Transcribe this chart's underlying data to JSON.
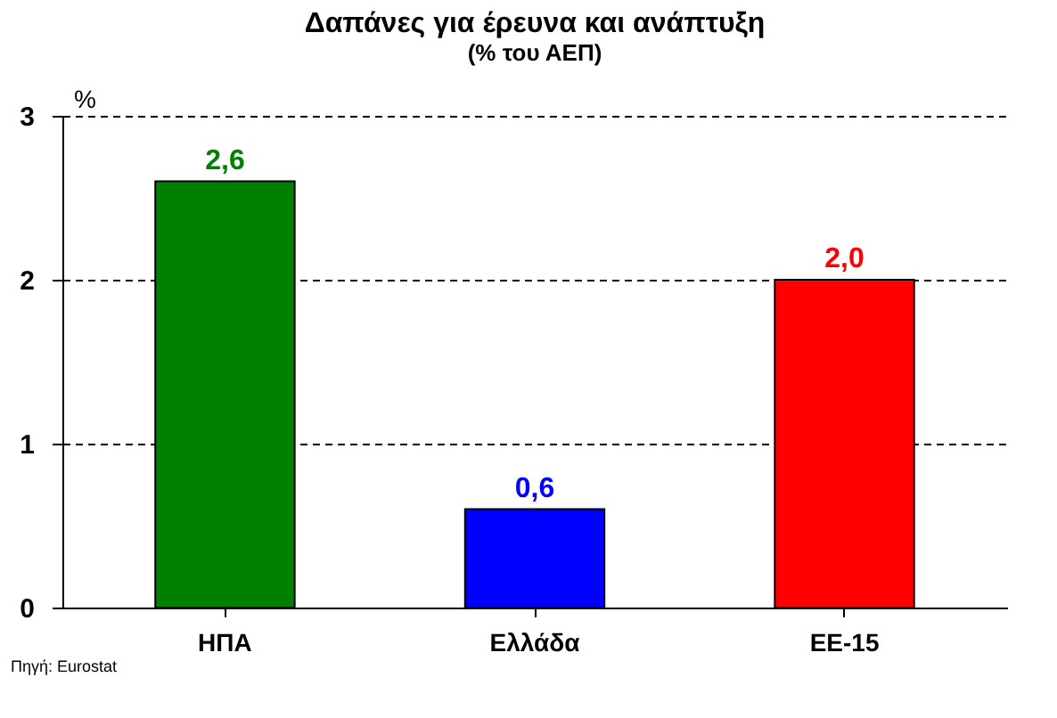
{
  "chart_data": {
    "type": "bar",
    "title": "Δαπάνες για έρευνα και ανάπτυξη",
    "subtitle": "(% του ΑΕΠ)",
    "ylabel": "%",
    "categories": [
      "ΗΠΑ",
      "Ελλάδα",
      "ΕΕ-15"
    ],
    "values": [
      2.6,
      0.6,
      2.0
    ],
    "colors": [
      "#008000",
      "#0000ff",
      "#ff0000"
    ],
    "value_labels": [
      "2,6",
      "0,6",
      "2,0"
    ],
    "ylim": [
      0,
      3
    ],
    "yticks": [
      0,
      1,
      2,
      3
    ],
    "grid": "y",
    "annotations": [
      "Πηγή: Eurostat"
    ]
  }
}
